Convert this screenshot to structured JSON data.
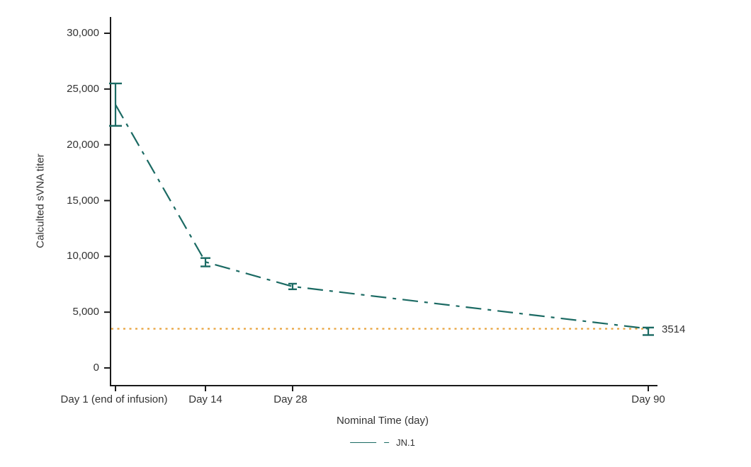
{
  "figure": {
    "background": "#ffffff"
  },
  "chart_data": {
    "type": "line",
    "title": "",
    "xlabel": "Nominal Time (day)",
    "ylabel": "Calculted sVNA titer",
    "grid": false,
    "legend_position": "bottom",
    "categories": [
      "Day 1 (end of infusion)",
      "Day 14",
      "Day 28",
      "Day 90"
    ],
    "x_days": [
      1,
      14,
      28,
      90
    ],
    "y_ticks": [
      0,
      5000,
      10000,
      15000,
      20000,
      25000,
      30000
    ],
    "y_tick_labels": [
      "0",
      "5,000",
      "10,000",
      "15,000",
      "20,000",
      "25,000",
      "30,000"
    ],
    "ylim": [
      0,
      31500
    ],
    "series": [
      {
        "name": "JN.1",
        "color": "#1B6A63",
        "line_style": "dash-dot",
        "marker": "error-bar",
        "means": [
          23600,
          9500,
          7300,
          3514
        ],
        "error_low": [
          21700,
          9100,
          7050,
          2950
        ],
        "error_high": [
          25500,
          9850,
          7550,
          3620
        ]
      }
    ],
    "reference_line": {
      "value": 3514,
      "label": "3514",
      "color": "#E8A33C",
      "style": "dotted"
    },
    "axis_color": "#1a1a1a",
    "text_color": "#333333"
  }
}
